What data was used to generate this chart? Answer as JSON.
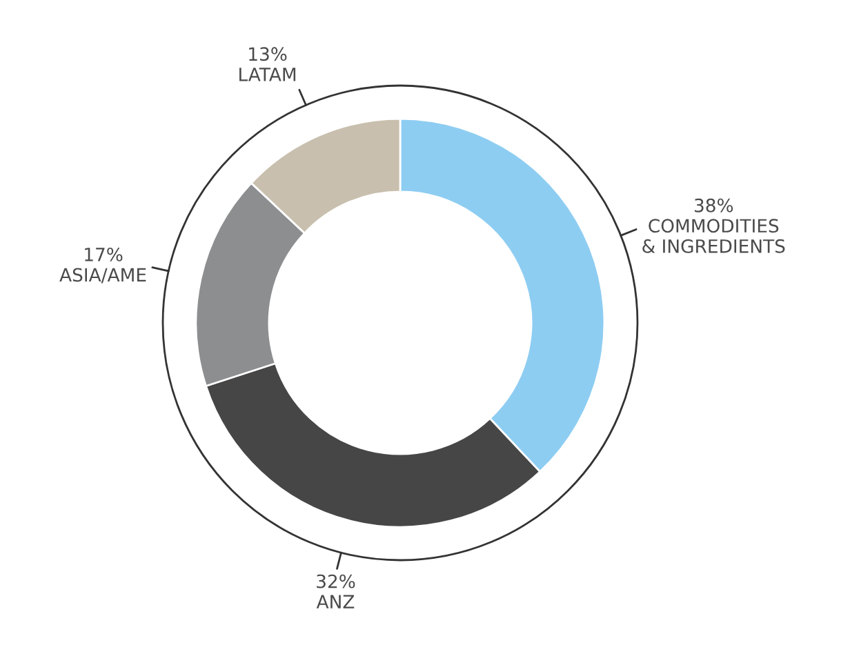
{
  "chart_data": {
    "type": "donut",
    "categories": [
      "COMMODITIES\n& INGREDIENTS",
      "ANZ",
      "ASIA/AME",
      "LATAM"
    ],
    "values": [
      38,
      32,
      17,
      13
    ],
    "value_labels": [
      "38%",
      "32%",
      "17%",
      "13%"
    ],
    "colors": [
      "#8ecdf2",
      "#464646",
      "#8c8e90",
      "#c8bfae"
    ],
    "legend": false
  }
}
